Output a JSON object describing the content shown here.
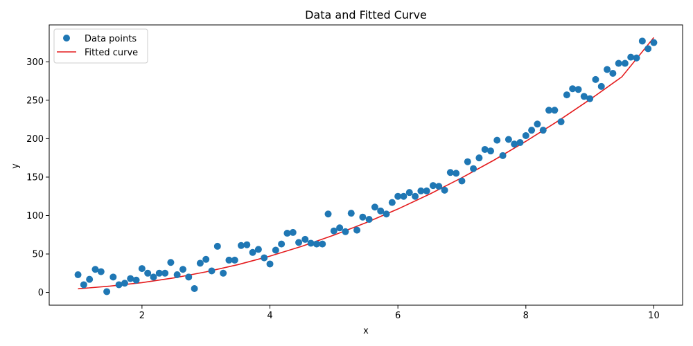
{
  "chart_data": {
    "type": "scatter",
    "title": "Data and Fitted Curve",
    "xlabel": "x",
    "ylabel": "y",
    "xlim": [
      0.55,
      10.45
    ],
    "ylim": [
      -16.6,
      348.0
    ],
    "x_ticks": [
      2,
      4,
      6,
      8,
      10
    ],
    "x_tick_labels": [
      "2",
      "4",
      "6",
      "8",
      "10"
    ],
    "y_ticks": [
      0,
      50,
      100,
      150,
      200,
      250,
      300
    ],
    "y_tick_labels": [
      "0",
      "50",
      "100",
      "150",
      "200",
      "250",
      "300"
    ],
    "grid": false,
    "legend_position": "top-left",
    "colors": {
      "points": "#1f77b4",
      "curve": "#e41a1c"
    },
    "series": [
      {
        "name": "Data points",
        "kind": "scatter",
        "x": [
          1.0,
          1.09,
          1.18,
          1.27,
          1.36,
          1.45,
          1.55,
          1.64,
          1.73,
          1.82,
          1.91,
          2.0,
          2.09,
          2.18,
          2.27,
          2.36,
          2.45,
          2.55,
          2.64,
          2.73,
          2.82,
          2.91,
          3.0,
          3.09,
          3.18,
          3.27,
          3.36,
          3.45,
          3.55,
          3.64,
          3.73,
          3.82,
          3.91,
          4.0,
          4.09,
          4.18,
          4.27,
          4.36,
          4.45,
          4.55,
          4.64,
          4.73,
          4.82,
          4.91,
          5.0,
          5.09,
          5.18,
          5.27,
          5.36,
          5.45,
          5.55,
          5.64,
          5.73,
          5.82,
          5.91,
          6.0,
          6.09,
          6.18,
          6.27,
          6.36,
          6.45,
          6.55,
          6.64,
          6.73,
          6.82,
          6.91,
          7.0,
          7.09,
          7.18,
          7.27,
          7.36,
          7.45,
          7.55,
          7.64,
          7.73,
          7.82,
          7.91,
          8.0,
          8.09,
          8.18,
          8.27,
          8.36,
          8.45,
          8.55,
          8.64,
          8.73,
          8.82,
          8.91,
          9.0,
          9.09,
          9.18,
          9.27,
          9.36,
          9.45,
          9.55,
          9.64,
          9.73,
          9.82,
          9.91,
          10.0
        ],
        "y": [
          23,
          10,
          17,
          30,
          27,
          1,
          20,
          10,
          12,
          18,
          16,
          31,
          25,
          20,
          25,
          25,
          39,
          23,
          30,
          20,
          5,
          38,
          43,
          28,
          60,
          25,
          42,
          42,
          61,
          62,
          52,
          56,
          45,
          37,
          55,
          63,
          77,
          78,
          65,
          69,
          64,
          63,
          63,
          102,
          80,
          84,
          79,
          103,
          81,
          98,
          95,
          111,
          106,
          102,
          117,
          125,
          125,
          130,
          125,
          132,
          132,
          139,
          138,
          133,
          156,
          155,
          145,
          170,
          161,
          175,
          186,
          184,
          198,
          178,
          199,
          193,
          195,
          204,
          211,
          219,
          211,
          237,
          237,
          222,
          257,
          265,
          264,
          255,
          252,
          277,
          268,
          290,
          285,
          298,
          298,
          306,
          305,
          327,
          317,
          325
        ]
      },
      {
        "name": "Fitted curve",
        "kind": "line",
        "x": [
          1.0,
          1.5,
          2.0,
          2.5,
          3.0,
          3.5,
          4.0,
          4.5,
          5.0,
          5.5,
          6.0,
          6.5,
          7.0,
          7.5,
          8.0,
          8.5,
          9.0,
          9.5,
          10.0
        ],
        "y": [
          4.7,
          8.2,
          12.7,
          18.9,
          26.7,
          36.1,
          47.2,
          60.0,
          74.5,
          90.6,
          108.5,
          128.0,
          149.2,
          172.0,
          196.6,
          222.8,
          250.8,
          280.4,
          331.6
        ]
      }
    ]
  }
}
